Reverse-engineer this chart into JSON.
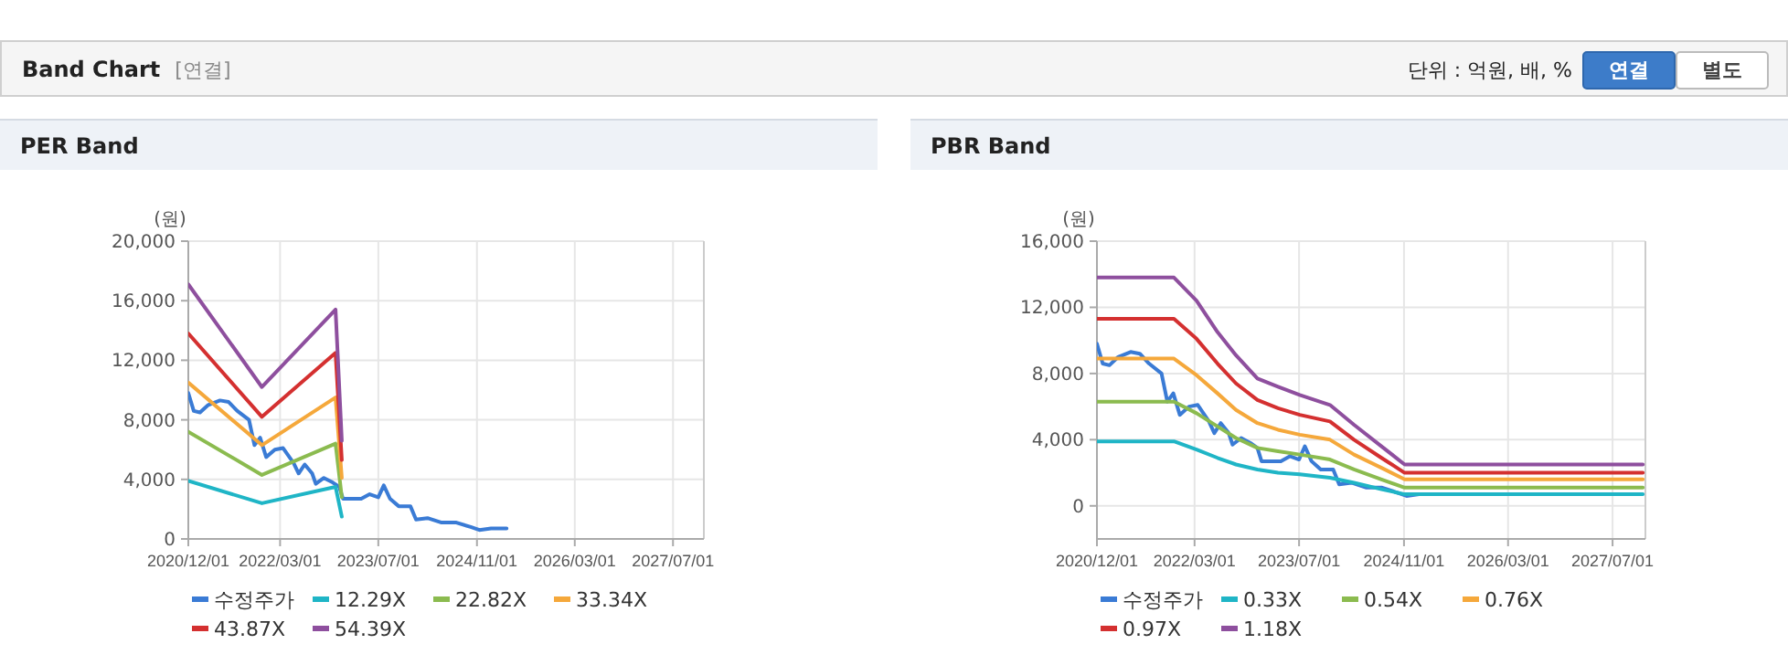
{
  "chart_data": [
    {
      "type": "other",
      "title": "Band Chart",
      "annotations": [
        "[연결]",
        "단위 : 억원, 배, %",
        "연결",
        "별도"
      ]
    },
    {
      "type": "line",
      "title": "PER Band",
      "ylabel": "(원)",
      "grid": true,
      "legend": "bottom",
      "xlim": [
        "2020-12-01",
        "2027-12-01"
      ],
      "xticks": [
        {
          "value": "2020-12-01",
          "label": "2020/12/01"
        },
        {
          "value": "2022-03-01",
          "label": "2022/03/01"
        },
        {
          "value": "2023-07-01",
          "label": "2023/07/01"
        },
        {
          "value": "2024-11-01",
          "label": "2024/11/01"
        },
        {
          "value": "2026-03-01",
          "label": "2026/03/01"
        },
        {
          "value": "2027-07-01",
          "label": "2027/07/01"
        }
      ],
      "ylim": [
        0,
        20000
      ],
      "yticks": [
        0,
        {
          "value": 4000,
          "label": "4,000"
        },
        {
          "value": 8000,
          "label": "8,000"
        },
        {
          "value": 12000,
          "label": "12,000"
        },
        {
          "value": 16000,
          "label": "16,000"
        },
        {
          "value": 20000,
          "label": "20,000"
        }
      ],
      "series": [
        {
          "name": "수정주가",
          "color": "#3a7bd5",
          "x": [
            "2020-12-01",
            "2020-12-28",
            "2021-01-28",
            "2021-03-10",
            "2021-05-07",
            "2021-06-19",
            "2021-08-01",
            "2021-09-28",
            "2021-10-25",
            "2021-11-22",
            "2021-12-22",
            "2022-02-03",
            "2022-03-16",
            "2022-05-07",
            "2022-06-01",
            "2022-07-01",
            "2022-08-07",
            "2022-08-25",
            "2022-10-04",
            "2022-11-16",
            "2022-12-19",
            "2023-01-07",
            "2023-04-07",
            "2023-05-19",
            "2023-07-01",
            "2023-07-28",
            "2023-08-28",
            "2023-10-10",
            "2023-12-07",
            "2024-01-04",
            "2024-03-01",
            "2024-05-10",
            "2024-07-22",
            "2024-10-01",
            "2024-11-13",
            "2025-01-10",
            "2025-03-28"
          ],
          "values": [
            9800,
            8600,
            8500,
            9000,
            9300,
            9200,
            8600,
            8000,
            6300,
            6800,
            5500,
            6000,
            6100,
            5100,
            4400,
            5000,
            4400,
            3700,
            4100,
            3800,
            3500,
            2700,
            2700,
            3000,
            2800,
            3600,
            2700,
            2200,
            2200,
            1300,
            1400,
            1100,
            1100,
            800,
            600,
            700,
            700
          ]
        },
        {
          "name": "12.29X",
          "color": "#1fb5c6",
          "x": [
            "2020-12-01",
            "2021-12-01",
            "2022-12-01",
            "2023-01-01"
          ],
          "values": [
            3900,
            2400,
            3500,
            1500
          ]
        },
        {
          "name": "22.82X",
          "color": "#8bbb4f",
          "x": [
            "2020-12-01",
            "2021-12-01",
            "2022-12-01",
            "2023-01-01"
          ],
          "values": [
            7200,
            4300,
            6400,
            2800
          ]
        },
        {
          "name": "33.34X",
          "color": "#f5a83b",
          "x": [
            "2020-12-01",
            "2021-12-01",
            "2022-12-01",
            "2023-01-01"
          ],
          "values": [
            10500,
            6300,
            9500,
            4100
          ]
        },
        {
          "name": "43.87X",
          "color": "#d43030",
          "x": [
            "2020-12-01",
            "2021-12-01",
            "2022-12-01",
            "2023-01-01"
          ],
          "values": [
            13800,
            8200,
            12500,
            5300
          ]
        },
        {
          "name": "54.39X",
          "color": "#8e4f9e",
          "x": [
            "2020-12-01",
            "2021-12-01",
            "2022-12-01",
            "2023-01-01"
          ],
          "values": [
            17100,
            10200,
            15400,
            6600
          ]
        }
      ]
    },
    {
      "type": "line",
      "title": "PBR Band",
      "ylabel": "(원)",
      "grid": true,
      "legend": "bottom",
      "xlim": [
        "2020-12-01",
        "2027-12-01"
      ],
      "xticks": [
        {
          "value": "2020-12-01",
          "label": "2020/12/01"
        },
        {
          "value": "2022-03-01",
          "label": "2022/03/01"
        },
        {
          "value": "2023-07-01",
          "label": "2023/07/01"
        },
        {
          "value": "2024-11-01",
          "label": "2024/11/01"
        },
        {
          "value": "2026-03-01",
          "label": "2026/03/01"
        },
        {
          "value": "2027-07-01",
          "label": "2027/07/01"
        }
      ],
      "ylim": [
        -2000,
        16000
      ],
      "yticks": [
        0,
        {
          "value": 4000,
          "label": "4,000"
        },
        {
          "value": 8000,
          "label": "8,000"
        },
        {
          "value": 12000,
          "label": "12,000"
        },
        {
          "value": 16000,
          "label": "16,000"
        }
      ],
      "series": [
        {
          "name": "수정주가",
          "color": "#3a7bd5",
          "x": [
            "2020-12-01",
            "2020-12-28",
            "2021-01-28",
            "2021-03-10",
            "2021-05-07",
            "2021-06-19",
            "2021-08-01",
            "2021-09-28",
            "2021-10-25",
            "2021-11-22",
            "2021-12-22",
            "2022-02-03",
            "2022-03-16",
            "2022-05-07",
            "2022-06-01",
            "2022-07-01",
            "2022-08-07",
            "2022-08-25",
            "2022-10-04",
            "2022-11-16",
            "2022-12-19",
            "2023-01-07",
            "2023-04-07",
            "2023-05-19",
            "2023-07-01",
            "2023-07-28",
            "2023-08-28",
            "2023-10-10",
            "2023-12-07",
            "2024-01-04",
            "2024-03-01",
            "2024-05-10",
            "2024-07-22",
            "2024-10-01",
            "2024-11-13",
            "2025-01-10",
            "2025-03-28"
          ],
          "values": [
            9800,
            8600,
            8500,
            9000,
            9300,
            9200,
            8600,
            8000,
            6300,
            6800,
            5500,
            6000,
            6100,
            5100,
            4400,
            5000,
            4400,
            3700,
            4100,
            3800,
            3500,
            2700,
            2700,
            3000,
            2800,
            3600,
            2700,
            2200,
            2200,
            1300,
            1400,
            1100,
            1100,
            800,
            600,
            700,
            700
          ]
        },
        {
          "name": "0.33X",
          "color": "#1fb5c6",
          "x": [
            "2020-12-01",
            "2021-11-25",
            "2022-03-10",
            "2022-06-16",
            "2022-09-10",
            "2022-12-19",
            "2023-03-25",
            "2023-07-04",
            "2023-11-22",
            "2024-03-13",
            "2024-07-19",
            "2024-11-04",
            "2027-11-19"
          ],
          "values": [
            3900,
            3900,
            3400,
            2900,
            2500,
            2200,
            2000,
            1900,
            1700,
            1400,
            1000,
            700,
            700
          ]
        },
        {
          "name": "0.54X",
          "color": "#8bbb4f",
          "x": [
            "2020-12-01",
            "2021-11-25",
            "2022-03-10",
            "2022-06-16",
            "2022-09-10",
            "2022-12-19",
            "2023-03-25",
            "2023-07-04",
            "2023-11-22",
            "2024-03-13",
            "2024-07-19",
            "2024-11-04",
            "2027-11-19"
          ],
          "values": [
            6300,
            6300,
            5600,
            4800,
            4100,
            3500,
            3300,
            3100,
            2800,
            2200,
            1600,
            1100,
            1100
          ]
        },
        {
          "name": "0.76X",
          "color": "#f5a83b",
          "x": [
            "2020-12-01",
            "2021-11-25",
            "2022-03-10",
            "2022-06-16",
            "2022-09-10",
            "2022-12-19",
            "2023-03-25",
            "2023-07-04",
            "2023-11-22",
            "2024-03-13",
            "2024-07-19",
            "2024-11-04",
            "2027-11-19"
          ],
          "values": [
            8900,
            8900,
            7900,
            6800,
            5800,
            5000,
            4600,
            4300,
            4000,
            3100,
            2300,
            1600,
            1600
          ]
        },
        {
          "name": "0.97X",
          "color": "#d43030",
          "x": [
            "2020-12-01",
            "2021-11-25",
            "2022-03-10",
            "2022-06-16",
            "2022-09-10",
            "2022-12-19",
            "2023-03-25",
            "2023-07-04",
            "2023-11-22",
            "2024-03-13",
            "2024-07-19",
            "2024-11-04",
            "2027-11-19"
          ],
          "values": [
            11300,
            11300,
            10100,
            8600,
            7400,
            6400,
            5900,
            5500,
            5100,
            4000,
            2900,
            2000,
            2000
          ]
        },
        {
          "name": "1.18X",
          "color": "#8e4f9e",
          "x": [
            "2020-12-01",
            "2021-11-25",
            "2022-03-10",
            "2022-06-16",
            "2022-09-10",
            "2022-12-19",
            "2023-03-25",
            "2023-07-04",
            "2023-11-22",
            "2024-03-13",
            "2024-07-19",
            "2024-11-04",
            "2027-11-19"
          ],
          "values": [
            13800,
            13800,
            12400,
            10500,
            9100,
            7700,
            7200,
            6700,
            6100,
            4900,
            3600,
            2500,
            2500
          ]
        }
      ]
    }
  ]
}
